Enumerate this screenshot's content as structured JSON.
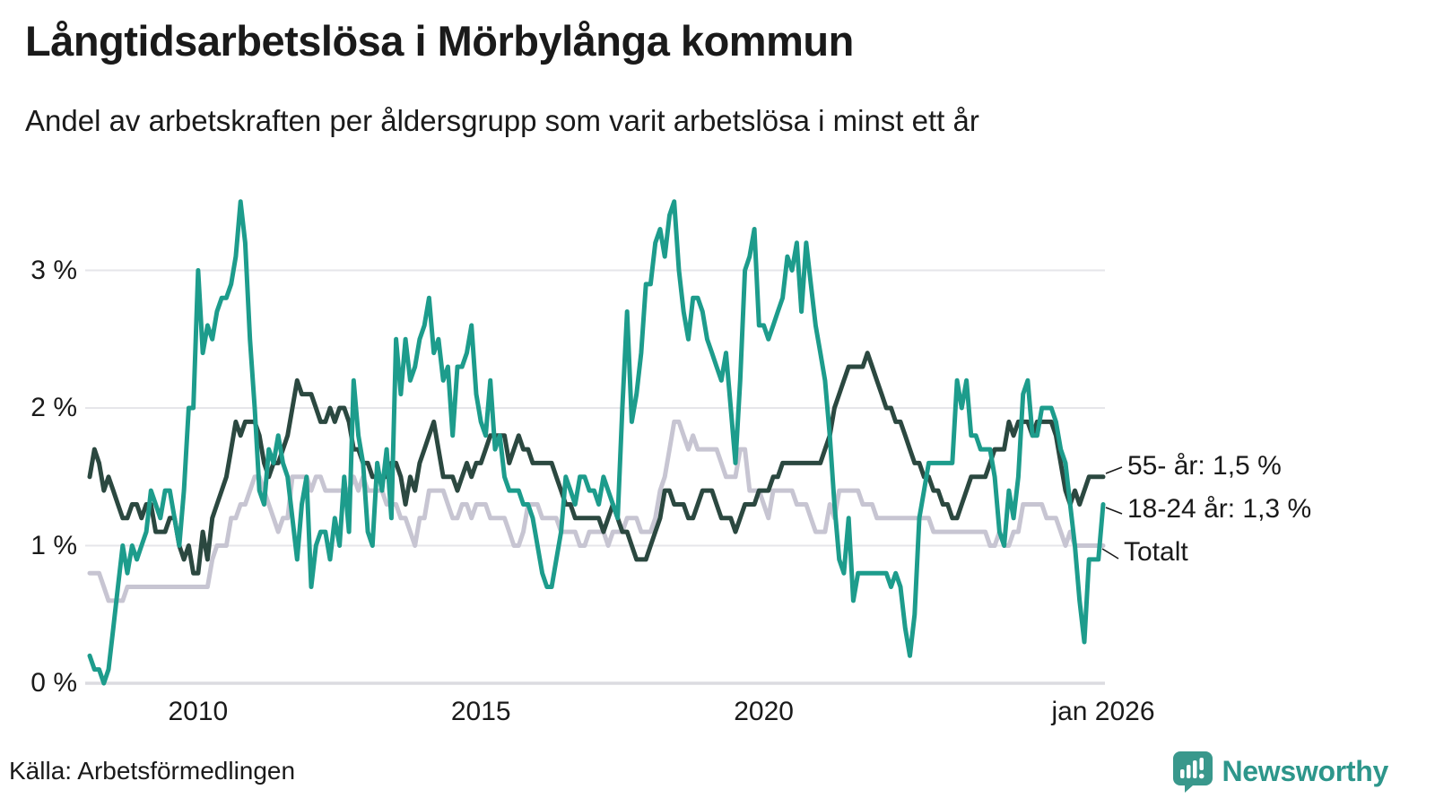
{
  "title": "Långtidsarbetslösa i Mörbylånga kommun",
  "subtitle": "Andel av arbetskraften per åldersgrupp som varit arbetslösa i minst ett år",
  "source": "Källa: Arbetsförmedlingen",
  "branding": {
    "name": "Newsworthy",
    "color": "#2d968b",
    "icon_color": "#39988c"
  },
  "chart_data": {
    "type": "line",
    "title": "Långtidsarbetslösa i Mörbylånga kommun",
    "xlabel": "",
    "ylabel": "",
    "x_start": "2008-02",
    "x_end": "2026-01",
    "x_interval": "monthly",
    "ylim": [
      0,
      3.6
    ],
    "grid": true,
    "unit": "%",
    "yticks": [
      {
        "value": 0,
        "label": "0 %"
      },
      {
        "value": 1,
        "label": "1 %"
      },
      {
        "value": 2,
        "label": "2 %"
      },
      {
        "value": 3,
        "label": "3 %"
      }
    ],
    "x_ticks": [
      {
        "index": 23,
        "label": "2010"
      },
      {
        "index": 83,
        "label": "2015"
      },
      {
        "index": 143,
        "label": "2020"
      },
      {
        "index": 215,
        "label": "jan 2026"
      }
    ],
    "legend_position": "end-of-line-labels",
    "series": [
      {
        "name": "Totalt",
        "color": "#c7c5d2",
        "end_label": "Totalt",
        "values": [
          0.8,
          0.8,
          0.8,
          0.7,
          0.6,
          0.6,
          0.6,
          0.6,
          0.7,
          0.7,
          0.7,
          0.7,
          0.7,
          0.7,
          0.7,
          0.7,
          0.7,
          0.7,
          0.7,
          0.7,
          0.7,
          0.7,
          0.7,
          0.7,
          0.7,
          0.7,
          0.9,
          1.0,
          1.0,
          1.0,
          1.2,
          1.2,
          1.3,
          1.3,
          1.4,
          1.5,
          1.5,
          1.4,
          1.3,
          1.2,
          1.1,
          1.2,
          1.2,
          1.5,
          1.5,
          1.5,
          1.5,
          1.4,
          1.5,
          1.5,
          1.4,
          1.4,
          1.4,
          1.4,
          1.4,
          1.4,
          1.5,
          1.4,
          1.5,
          1.4,
          1.4,
          1.4,
          1.4,
          1.3,
          1.3,
          1.3,
          1.2,
          1.2,
          1.1,
          1.0,
          1.2,
          1.2,
          1.4,
          1.4,
          1.4,
          1.4,
          1.3,
          1.2,
          1.2,
          1.3,
          1.3,
          1.2,
          1.3,
          1.3,
          1.3,
          1.2,
          1.2,
          1.2,
          1.2,
          1.1,
          1.0,
          1.0,
          1.1,
          1.3,
          1.3,
          1.3,
          1.2,
          1.2,
          1.2,
          1.2,
          1.1,
          1.1,
          1.1,
          1.1,
          1.0,
          1.0,
          1.1,
          1.1,
          1.1,
          1.1,
          1.0,
          1.1,
          1.1,
          1.1,
          1.2,
          1.2,
          1.2,
          1.1,
          1.1,
          1.1,
          1.2,
          1.4,
          1.5,
          1.7,
          1.9,
          1.9,
          1.8,
          1.7,
          1.8,
          1.7,
          1.7,
          1.7,
          1.7,
          1.7,
          1.6,
          1.5,
          1.5,
          1.5,
          1.7,
          1.7,
          1.4,
          1.4,
          1.4,
          1.3,
          1.2,
          1.4,
          1.4,
          1.4,
          1.4,
          1.4,
          1.3,
          1.3,
          1.3,
          1.2,
          1.1,
          1.1,
          1.1,
          1.3,
          1.2,
          1.4,
          1.4,
          1.4,
          1.4,
          1.4,
          1.3,
          1.3,
          1.3,
          1.2,
          1.2,
          1.2,
          1.2,
          1.2,
          1.2,
          1.2,
          1.2,
          1.2,
          1.2,
          1.2,
          1.2,
          1.1,
          1.1,
          1.1,
          1.1,
          1.1,
          1.1,
          1.1,
          1.1,
          1.1,
          1.1,
          1.1,
          1.1,
          1.0,
          1.0,
          1.1,
          1.0,
          1.0,
          1.1,
          1.1,
          1.3,
          1.3,
          1.3,
          1.3,
          1.3,
          1.2,
          1.2,
          1.2,
          1.1,
          1.0,
          1.1,
          1.0,
          1.0,
          1.0,
          1.0,
          1.0,
          1.0,
          1.0
        ]
      },
      {
        "name": "55- år",
        "color": "#2b4840",
        "end_label": "55- år: 1,5 %",
        "values": [
          1.5,
          1.7,
          1.6,
          1.4,
          1.5,
          1.4,
          1.3,
          1.2,
          1.2,
          1.3,
          1.3,
          1.2,
          1.3,
          1.3,
          1.1,
          1.1,
          1.1,
          1.2,
          1.2,
          1.0,
          0.9,
          1.0,
          0.8,
          0.8,
          1.1,
          0.9,
          1.2,
          1.3,
          1.4,
          1.5,
          1.7,
          1.9,
          1.8,
          1.9,
          1.9,
          1.9,
          1.8,
          1.6,
          1.5,
          1.6,
          1.6,
          1.7,
          1.8,
          2.0,
          2.2,
          2.1,
          2.1,
          2.1,
          2.0,
          1.9,
          1.9,
          2.0,
          1.9,
          2.0,
          2.0,
          1.9,
          1.7,
          1.7,
          1.6,
          1.6,
          1.5,
          1.5,
          1.5,
          1.5,
          1.6,
          1.6,
          1.5,
          1.3,
          1.5,
          1.4,
          1.6,
          1.7,
          1.8,
          1.9,
          1.7,
          1.5,
          1.5,
          1.5,
          1.4,
          1.5,
          1.6,
          1.5,
          1.6,
          1.6,
          1.7,
          1.8,
          1.8,
          1.8,
          1.8,
          1.6,
          1.7,
          1.8,
          1.7,
          1.7,
          1.6,
          1.6,
          1.6,
          1.6,
          1.6,
          1.5,
          1.4,
          1.3,
          1.3,
          1.2,
          1.2,
          1.2,
          1.2,
          1.2,
          1.2,
          1.1,
          1.2,
          1.3,
          1.2,
          1.1,
          1.1,
          1.0,
          0.9,
          0.9,
          0.9,
          1.0,
          1.1,
          1.2,
          1.4,
          1.4,
          1.3,
          1.3,
          1.3,
          1.2,
          1.2,
          1.3,
          1.4,
          1.4,
          1.4,
          1.3,
          1.2,
          1.2,
          1.2,
          1.1,
          1.2,
          1.3,
          1.3,
          1.3,
          1.4,
          1.4,
          1.4,
          1.5,
          1.5,
          1.6,
          1.6,
          1.6,
          1.6,
          1.6,
          1.6,
          1.6,
          1.6,
          1.6,
          1.7,
          1.8,
          2.0,
          2.1,
          2.2,
          2.3,
          2.3,
          2.3,
          2.3,
          2.4,
          2.3,
          2.2,
          2.1,
          2.0,
          2.0,
          1.9,
          1.9,
          1.8,
          1.7,
          1.6,
          1.6,
          1.5,
          1.5,
          1.4,
          1.4,
          1.3,
          1.3,
          1.2,
          1.2,
          1.3,
          1.4,
          1.5,
          1.5,
          1.5,
          1.5,
          1.6,
          1.7,
          1.7,
          1.7,
          1.9,
          1.8,
          1.9,
          1.9,
          1.9,
          1.8,
          1.9,
          1.9,
          1.9,
          1.9,
          1.8,
          1.6,
          1.4,
          1.3,
          1.4,
          1.3,
          1.4,
          1.5,
          1.5,
          1.5,
          1.5
        ]
      },
      {
        "name": "18-24 år",
        "color": "#1d9c8c",
        "end_label": "18-24 år: 1,3 %",
        "values": [
          0.2,
          0.1,
          0.1,
          0.0,
          0.1,
          0.4,
          0.7,
          1.0,
          0.8,
          1.0,
          0.9,
          1.0,
          1.1,
          1.4,
          1.3,
          1.2,
          1.4,
          1.4,
          1.2,
          1.0,
          1.4,
          2.0,
          2.0,
          3.0,
          2.4,
          2.6,
          2.5,
          2.7,
          2.8,
          2.8,
          2.9,
          3.1,
          3.5,
          3.2,
          2.5,
          2.0,
          1.4,
          1.3,
          1.7,
          1.6,
          1.8,
          1.6,
          1.5,
          1.2,
          0.9,
          1.3,
          1.5,
          0.7,
          1.0,
          1.1,
          1.1,
          0.9,
          1.2,
          1.0,
          1.5,
          1.1,
          2.2,
          1.8,
          1.6,
          1.1,
          1.0,
          1.6,
          1.4,
          1.7,
          1.2,
          2.5,
          2.1,
          2.5,
          2.2,
          2.3,
          2.5,
          2.6,
          2.8,
          2.4,
          2.5,
          2.2,
          2.3,
          1.8,
          2.3,
          2.3,
          2.4,
          2.6,
          2.1,
          1.9,
          1.8,
          2.2,
          1.7,
          1.8,
          1.5,
          1.4,
          1.4,
          1.4,
          1.3,
          1.3,
          1.2,
          1.0,
          0.8,
          0.7,
          0.7,
          0.9,
          1.1,
          1.5,
          1.4,
          1.3,
          1.5,
          1.5,
          1.4,
          1.4,
          1.3,
          1.5,
          1.4,
          1.3,
          1.2,
          2.0,
          2.7,
          1.9,
          2.1,
          2.4,
          2.9,
          2.9,
          3.2,
          3.3,
          3.1,
          3.4,
          3.5,
          3.0,
          2.7,
          2.5,
          2.8,
          2.8,
          2.7,
          2.5,
          2.4,
          2.3,
          2.2,
          2.4,
          2.0,
          1.6,
          2.2,
          3.0,
          3.1,
          3.3,
          2.6,
          2.6,
          2.5,
          2.6,
          2.7,
          2.8,
          3.1,
          3.0,
          3.2,
          2.7,
          3.2,
          2.9,
          2.6,
          2.4,
          2.2,
          1.8,
          1.3,
          0.9,
          0.8,
          1.2,
          0.6,
          0.8,
          0.8,
          0.8,
          0.8,
          0.8,
          0.8,
          0.8,
          0.7,
          0.8,
          0.7,
          0.4,
          0.2,
          0.5,
          1.2,
          1.4,
          1.6,
          1.6,
          1.6,
          1.6,
          1.6,
          1.6,
          2.2,
          2.0,
          2.2,
          1.8,
          1.8,
          1.7,
          1.7,
          1.7,
          1.5,
          1.1,
          1.0,
          1.4,
          1.2,
          1.5,
          2.1,
          2.2,
          1.8,
          1.8,
          2.0,
          2.0,
          2.0,
          1.9,
          1.7,
          1.6,
          1.3,
          1.0,
          0.6,
          0.3,
          0.9,
          0.9,
          0.9,
          1.3
        ]
      }
    ]
  }
}
